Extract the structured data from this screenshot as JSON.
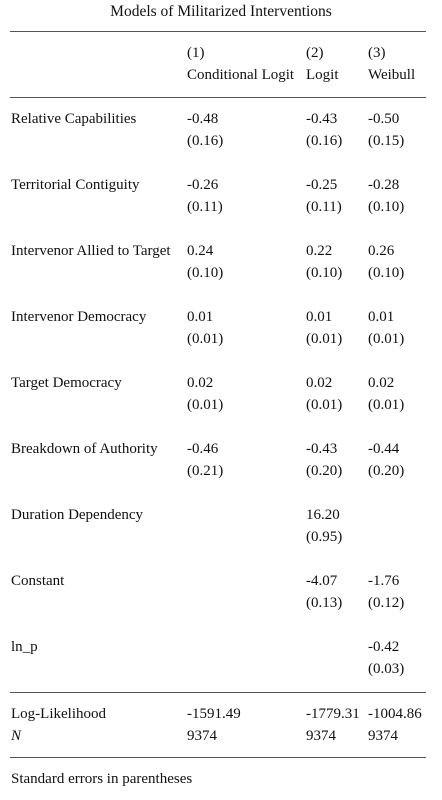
{
  "caption": "Models of Militarized Interventions",
  "columns": [
    {
      "number": "(1)",
      "name": "Conditional Logit"
    },
    {
      "number": "(2)",
      "name": "Logit"
    },
    {
      "number": "(3)",
      "name": "Weibull"
    }
  ],
  "rows": [
    {
      "label": "Relative Capabilities",
      "coef": [
        "-0.48",
        "-0.43",
        "-0.50"
      ],
      "se": [
        "(0.16)",
        "(0.16)",
        "(0.15)"
      ]
    },
    {
      "label": "Territorial Contiguity",
      "coef": [
        "-0.26",
        "-0.25",
        "-0.28"
      ],
      "se": [
        "(0.11)",
        "(0.11)",
        "(0.10)"
      ]
    },
    {
      "label": "Intervenor Allied to Target",
      "coef": [
        "0.24",
        "0.22",
        "0.26"
      ],
      "se": [
        "(0.10)",
        "(0.10)",
        "(0.10)"
      ]
    },
    {
      "label": "Intervenor Democracy",
      "coef": [
        "0.01",
        "0.01",
        "0.01"
      ],
      "se": [
        "(0.01)",
        "(0.01)",
        "(0.01)"
      ]
    },
    {
      "label": "Target Democracy",
      "coef": [
        "0.02",
        "0.02",
        "0.02"
      ],
      "se": [
        "(0.01)",
        "(0.01)",
        "(0.01)"
      ]
    },
    {
      "label": "Breakdown of Authority",
      "coef": [
        "-0.46",
        "-0.43",
        "-0.44"
      ],
      "se": [
        "(0.21)",
        "(0.20)",
        "(0.20)"
      ]
    },
    {
      "label": "Duration Dependency",
      "coef": [
        "",
        "16.20",
        ""
      ],
      "se": [
        "",
        "(0.95)",
        ""
      ]
    },
    {
      "label": "Constant",
      "coef": [
        "",
        "-4.07",
        "-1.76"
      ],
      "se": [
        "",
        "(0.13)",
        "(0.12)"
      ]
    },
    {
      "label": "ln_p",
      "coef": [
        "",
        "",
        "-0.42"
      ],
      "se": [
        "",
        "",
        "(0.03)"
      ]
    }
  ],
  "stats": [
    {
      "label": "Log-Likelihood",
      "values": [
        "-1591.49",
        "-1779.31",
        "-1004.86"
      ]
    },
    {
      "label": "N",
      "values": [
        "9374",
        "9374",
        "9374"
      ]
    }
  ],
  "footnote": "Standard errors in parentheses"
}
